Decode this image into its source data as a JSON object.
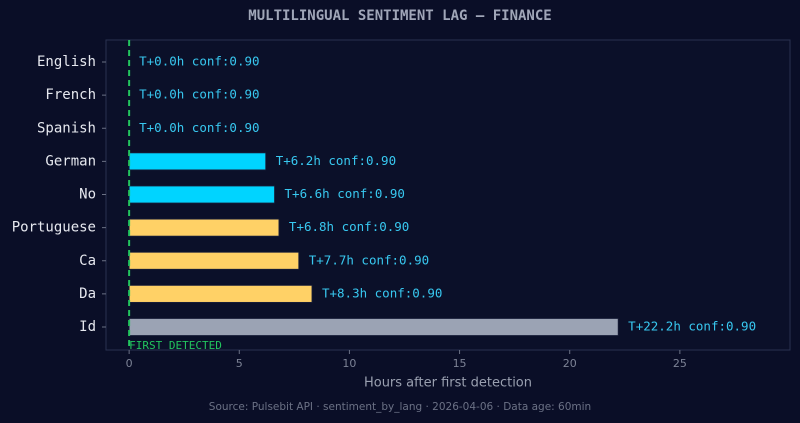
{
  "chart_data": {
    "type": "hbar",
    "title": "MULTILINGUAL SENTIMENT LAG — FINANCE",
    "categories": [
      "English",
      "French",
      "Spanish",
      "German",
      "No",
      "Portuguese",
      "Ca",
      "Da",
      "Id"
    ],
    "values": [
      0.0,
      0.0,
      0.0,
      6.2,
      6.6,
      6.8,
      7.7,
      8.3,
      22.2
    ],
    "value_labels": [
      "T+0.0h  conf:0.90",
      "T+0.0h  conf:0.90",
      "T+0.0h  conf:0.90",
      "T+6.2h  conf:0.90",
      "T+6.6h  conf:0.90",
      "T+6.8h  conf:0.90",
      "T+7.7h  conf:0.90",
      "T+8.3h  conf:0.90",
      "T+22.2h  conf:0.90"
    ],
    "colors": [
      "#00d4ff",
      "#00d4ff",
      "#00d4ff",
      "#00d4ff",
      "#00d4ff",
      "#ffd166",
      "#ffd166",
      "#ffd166",
      "#9ba3b4"
    ],
    "xlim": [
      -1.05,
      30
    ],
    "xticks": [
      0,
      5,
      10,
      15,
      20,
      25
    ],
    "xlabel": "Hours after first detection",
    "reference_line": {
      "value": 0,
      "label": "FIRST DETECTED",
      "color": "#22c55e"
    },
    "source": "Source: Pulsebit API · sentiment_by_lang · 2026-04-06 · Data age: 60min"
  }
}
